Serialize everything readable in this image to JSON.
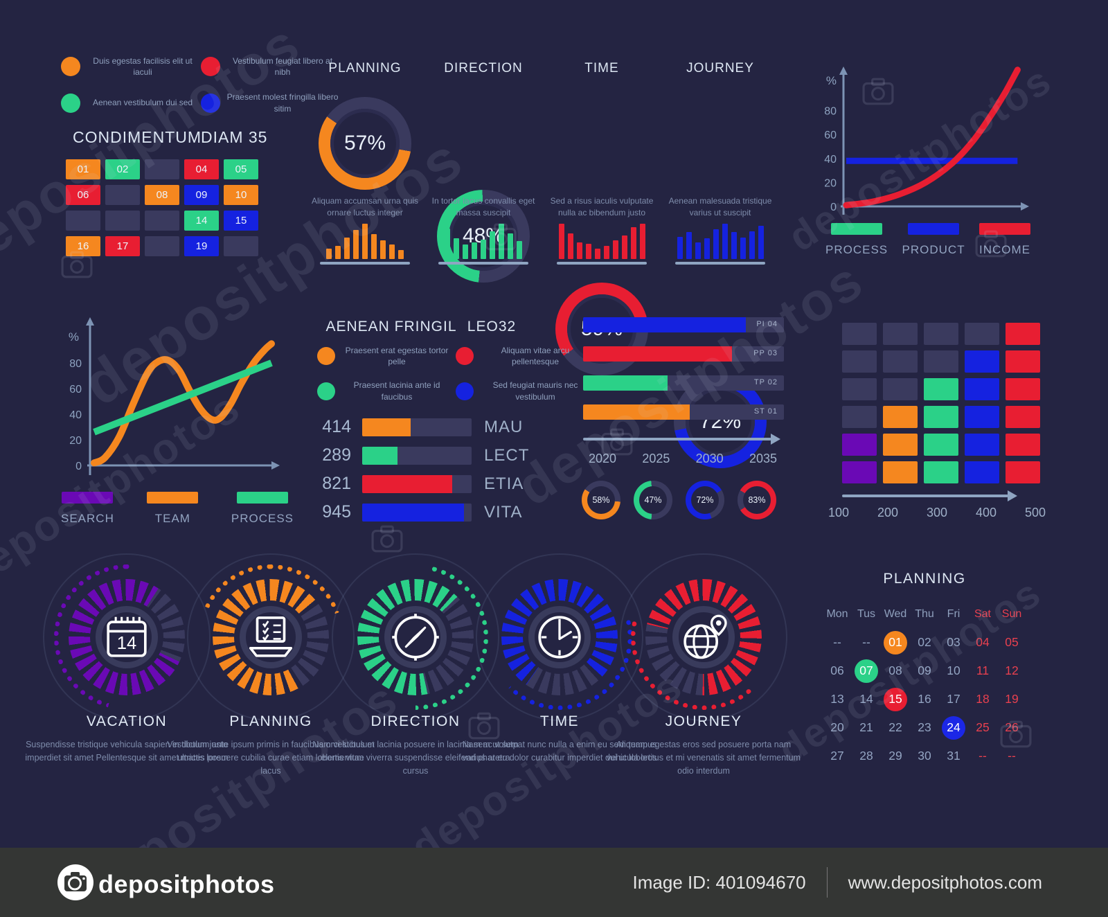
{
  "watermark": {
    "brand": "depositphotos",
    "image_id": "Image ID: 401094670",
    "site": "www.depositphotos.com"
  },
  "palette": {
    "orange": "#f5871f",
    "green": "#2bd188",
    "red": "#e81e32",
    "blue": "#1522e0",
    "purple": "#6a09b5",
    "dim": "#3a3a5e",
    "bg": "#242442",
    "axis": "#7d93b4",
    "muted": "#8ea3c0"
  },
  "legend_panel": {
    "header_left": "CONDIMENTUM",
    "header_right": "DIAM 35",
    "items": [
      {
        "color": "orange",
        "text": "Duis egestas facilisis elit ut iaculi"
      },
      {
        "color": "red",
        "text": "Vestibulum feugiat libero at nibh"
      },
      {
        "color": "green",
        "text": "Aenean vestibulum dui sed"
      },
      {
        "color": "blue",
        "text": "Praesent molest fringilla libero sitim"
      }
    ],
    "cells": [
      {
        "t": "01",
        "c": "orange"
      },
      {
        "t": "02",
        "c": "green"
      },
      {
        "t": "",
        "c": "dim"
      },
      {
        "t": "04",
        "c": "red"
      },
      {
        "t": "05",
        "c": "green"
      },
      {
        "t": "06",
        "c": "red"
      },
      {
        "t": "",
        "c": "dim"
      },
      {
        "t": "08",
        "c": "orange"
      },
      {
        "t": "09",
        "c": "blue"
      },
      {
        "t": "10",
        "c": "orange"
      },
      {
        "t": "",
        "c": "dim"
      },
      {
        "t": "",
        "c": "dim"
      },
      {
        "t": "",
        "c": "dim"
      },
      {
        "t": "14",
        "c": "green"
      },
      {
        "t": "15",
        "c": "blue"
      },
      {
        "t": "16",
        "c": "orange"
      },
      {
        "t": "17",
        "c": "red"
      },
      {
        "t": "",
        "c": "dim"
      },
      {
        "t": "19",
        "c": "blue"
      },
      {
        "t": "",
        "c": "dim"
      }
    ]
  },
  "fringil": {
    "title_left": "AENEAN FRINGIL",
    "title_right": "LEO32",
    "legend": [
      {
        "color": "orange",
        "text": "Praesent erat egestas tortor pelle"
      },
      {
        "color": "red",
        "text": "Aliquam vitae arcu pellentesque"
      },
      {
        "color": "green",
        "text": "Praesent lacinia ante id faucibus"
      },
      {
        "color": "blue",
        "text": "Sed feugiat mauris nec vestibulum"
      }
    ]
  },
  "chart_data": [
    {
      "id": "kpi_donuts",
      "type": "pie",
      "items": [
        {
          "title": "PLANNING",
          "percent": 57,
          "color": "orange",
          "from": 100,
          "caption": "Aliquam accumsan urna quis ornare luctus integer",
          "bars": [
            28,
            36,
            58,
            78,
            95,
            66,
            50,
            38,
            25
          ]
        },
        {
          "title": "DIRECTION",
          "percent": 48,
          "color": "green",
          "from": 186,
          "caption": "In tortor lacus convallis eget massa suscipit",
          "bars": [
            82,
            55,
            38,
            45,
            52,
            75,
            95,
            68,
            48
          ]
        },
        {
          "title": "TIME",
          "percent": 59,
          "color": "red",
          "from": 235,
          "caption": "Sed a risus iaculis vulputate nulla ac bibendum justo",
          "bars": [
            95,
            68,
            45,
            40,
            28,
            36,
            50,
            63,
            85,
            95
          ]
        },
        {
          "title": "JOURNEY",
          "percent": 72,
          "color": "blue",
          "from": 0,
          "caption": "Aenean malesuada tristique varius ut suscipit",
          "bars": [
            60,
            72,
            45,
            56,
            80,
            95,
            73,
            58,
            74,
            88
          ]
        }
      ]
    },
    {
      "id": "growth_line",
      "type": "line",
      "ylabel": "%",
      "yticks": [
        0,
        20,
        40,
        60,
        80
      ],
      "ylim": [
        0,
        100
      ],
      "grid": false,
      "legend_position": "bottom",
      "legend": [
        {
          "label": "PROCESS",
          "color": "green"
        },
        {
          "label": "PRODUCT",
          "color": "blue"
        },
        {
          "label": "INCOME",
          "color": "red"
        }
      ],
      "series": [
        {
          "name": "INCOME",
          "color": "red",
          "points": [
            [
              0,
              1
            ],
            [
              15,
              4
            ],
            [
              30,
              10
            ],
            [
              45,
              20
            ],
            [
              60,
              36
            ],
            [
              72,
              55
            ],
            [
              82,
              76
            ],
            [
              90,
              95
            ],
            [
              97,
              114
            ]
          ]
        },
        {
          "name": "PRODUCT",
          "color": "blue",
          "points": [
            [
              0,
              38
            ],
            [
              97,
              38
            ]
          ]
        },
        {
          "name": "PROCESS",
          "color": "green",
          "points": []
        }
      ]
    },
    {
      "id": "wave_line",
      "type": "line",
      "ylabel": "%",
      "yticks": [
        0,
        20,
        40,
        60,
        80
      ],
      "ylim": [
        0,
        100
      ],
      "grid": false,
      "legend_position": "bottom",
      "legend": [
        {
          "label": "SEARCH",
          "color": "purple"
        },
        {
          "label": "TEAM",
          "color": "orange"
        },
        {
          "label": "PROCESS",
          "color": "green"
        }
      ],
      "series": [
        {
          "name": "TEAM",
          "color": "orange",
          "points": [
            [
              0,
              2
            ],
            [
              6,
              6
            ],
            [
              14,
              22
            ],
            [
              22,
              48
            ],
            [
              30,
              72
            ],
            [
              36,
              81
            ],
            [
              42,
              82
            ],
            [
              48,
              74
            ],
            [
              54,
              58
            ],
            [
              60,
              44
            ],
            [
              66,
              36
            ],
            [
              71,
              37
            ],
            [
              77,
              48
            ],
            [
              83,
              64
            ],
            [
              90,
              80
            ],
            [
              96,
              90
            ],
            [
              100,
              95
            ]
          ]
        },
        {
          "name": "PROCESS",
          "color": "green",
          "points": [
            [
              0,
              26
            ],
            [
              100,
              80
            ]
          ]
        },
        {
          "name": "SEARCH",
          "color": "purple",
          "points": []
        }
      ]
    },
    {
      "id": "fringil_bars",
      "type": "bar",
      "orientation": "horizontal",
      "xlim": [
        0,
        1000
      ],
      "bars": [
        {
          "value": "414",
          "label": "MAU",
          "color": "orange",
          "pct": 44
        },
        {
          "value": "289",
          "label": "LECT",
          "color": "green",
          "pct": 32
        },
        {
          "value": "821",
          "label": "ETIA",
          "color": "red",
          "pct": 82
        },
        {
          "value": "945",
          "label": "VITA",
          "color": "blue",
          "pct": 93
        }
      ]
    },
    {
      "id": "timeline_bars",
      "type": "bar",
      "orientation": "horizontal",
      "categories": [
        "2020",
        "2025",
        "2030",
        "2035"
      ],
      "bars": [
        {
          "label": "PI 04",
          "pct": 81,
          "color": "blue"
        },
        {
          "label": "PP 03",
          "pct": 74,
          "color": "red"
        },
        {
          "label": "TP 02",
          "pct": 42,
          "color": "green"
        },
        {
          "label": "ST 01",
          "pct": 53,
          "color": "orange"
        }
      ],
      "donuts": [
        {
          "percent": 58,
          "color": "orange",
          "from": 95
        },
        {
          "percent": 47,
          "color": "green",
          "from": 185
        },
        {
          "percent": 72,
          "color": "blue",
          "from": 160
        },
        {
          "percent": 83,
          "color": "red",
          "from": 300
        }
      ]
    },
    {
      "id": "matrix",
      "type": "heatmap",
      "xlabels": [
        "100",
        "200",
        "300",
        "400",
        "500"
      ],
      "rows": [
        [
          "dim",
          "dim",
          "dim",
          "dim",
          "red"
        ],
        [
          "dim",
          "dim",
          "dim",
          "blue",
          "red"
        ],
        [
          "dim",
          "dim",
          "green",
          "blue",
          "red"
        ],
        [
          "dim",
          "orange",
          "green",
          "blue",
          "red"
        ],
        [
          "purple",
          "orange",
          "green",
          "blue",
          "red"
        ],
        [
          "purple",
          "orange",
          "green",
          "blue",
          "red"
        ]
      ]
    },
    {
      "id": "progress_gauges",
      "type": "pie",
      "items": [
        {
          "title": "VACATION",
          "icon": "calendar",
          "color": "purple",
          "ring_from": 115,
          "ring_deg": 278,
          "dots_from": 195,
          "dots_deg": 170,
          "desc": "Suspendisse tristique vehicula sapien in dictum justo imperdiet sit amet Pellentesque sit amet mattis lorem"
        },
        {
          "title": "PLANNING",
          "icon": "laptop",
          "color": "orange",
          "ring_from": 150,
          "ring_deg": 262,
          "dots_from": 295,
          "dots_deg": 135,
          "desc": "Vestibulum ante ipsum primis in faucibus orci luctus et ultrices posuere cubilia curae etiam lobortis vitae lacus"
        },
        {
          "title": "DIRECTION",
          "icon": "compass",
          "color": "green",
          "ring_from": 168,
          "ring_deg": 238,
          "dots_from": 12,
          "dots_deg": 168,
          "desc": "Nam vestibulum lacinia posuere in lacinia sem ut sem elementum viverra suspendisse eleifend pharetra cursus"
        },
        {
          "title": "TIME",
          "icon": "clock",
          "color": "blue",
          "ring_from": 215,
          "ring_deg": 282,
          "dots_from": 75,
          "dots_deg": 150,
          "desc": "Nam ac volutpat nunc nulla a enim eu sem tempus varius at eu dolor curabitur imperdiet dui ut lobortis"
        },
        {
          "title": "JOURNEY",
          "icon": "globe",
          "color": "red",
          "ring_from": 283,
          "ring_deg": 258,
          "dots_from": 135,
          "dots_deg": 150,
          "desc": "Aliquam egestas eros sed posuere porta nam vehicula lectus et mi venenatis sit amet fermentum odio interdum"
        }
      ]
    },
    {
      "id": "calendar",
      "type": "table",
      "title": "PLANNING",
      "headers": [
        {
          "t": "Mon",
          "w": false
        },
        {
          "t": "Tus",
          "w": false
        },
        {
          "t": "Wed",
          "w": false
        },
        {
          "t": "Thu",
          "w": false
        },
        {
          "t": "Fri",
          "w": false
        },
        {
          "t": "Sat",
          "w": true
        },
        {
          "t": "Sun",
          "w": true
        }
      ],
      "rows": [
        [
          {
            "t": "--",
            "k": "d"
          },
          {
            "t": "--",
            "k": "d"
          },
          {
            "t": "01",
            "k": "o"
          },
          {
            "t": "02",
            "k": "d"
          },
          {
            "t": "03",
            "k": "d"
          },
          {
            "t": "04",
            "k": "w"
          },
          {
            "t": "05",
            "k": "w"
          }
        ],
        [
          {
            "t": "06",
            "k": "d"
          },
          {
            "t": "07",
            "k": "g"
          },
          {
            "t": "08",
            "k": "d"
          },
          {
            "t": "09",
            "k": "d"
          },
          {
            "t": "10",
            "k": "d"
          },
          {
            "t": "11",
            "k": "w"
          },
          {
            "t": "12",
            "k": "w"
          }
        ],
        [
          {
            "t": "13",
            "k": "d"
          },
          {
            "t": "14",
            "k": "d"
          },
          {
            "t": "15",
            "k": "r"
          },
          {
            "t": "16",
            "k": "d"
          },
          {
            "t": "17",
            "k": "d"
          },
          {
            "t": "18",
            "k": "w"
          },
          {
            "t": "19",
            "k": "w"
          }
        ],
        [
          {
            "t": "20",
            "k": "d"
          },
          {
            "t": "21",
            "k": "d"
          },
          {
            "t": "22",
            "k": "d"
          },
          {
            "t": "23",
            "k": "d"
          },
          {
            "t": "24",
            "k": "b"
          },
          {
            "t": "25",
            "k": "w"
          },
          {
            "t": "26",
            "k": "w"
          }
        ],
        [
          {
            "t": "27",
            "k": "d"
          },
          {
            "t": "28",
            "k": "d"
          },
          {
            "t": "29",
            "k": "d"
          },
          {
            "t": "30",
            "k": "d"
          },
          {
            "t": "31",
            "k": "d"
          },
          {
            "t": "--",
            "k": "w"
          },
          {
            "t": "--",
            "k": "w"
          }
        ]
      ]
    }
  ]
}
